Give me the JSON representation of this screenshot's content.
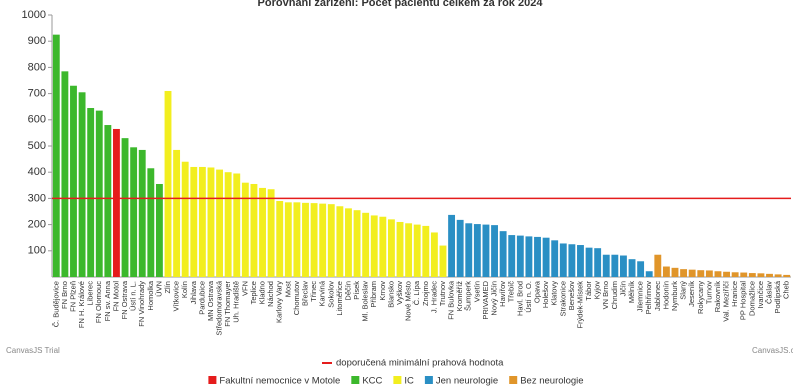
{
  "chart_data": {
    "type": "bar",
    "title": "Porovnání zařízení: Počet pacientů celkem za rok 2024",
    "categories": [
      "Č. Budějovice",
      "FN Brno",
      "FN Plzeň",
      "FN H. Králové",
      "Liberec",
      "FN Olomouc",
      "FN sv. Anna",
      "FN Motol",
      "FN Ostrava",
      "Ústí n. L.",
      "FN Vinohrady",
      "Homolka",
      "ÚVN",
      "Zlín",
      "Vítkovice",
      "Kolín",
      "Jihlava",
      "Pardubice",
      "MN Ostrava",
      "Středomoravská",
      "FN Thomayer",
      "Uh. Hradiště",
      "VFN",
      "Teplice",
      "Kladno",
      "Náchod",
      "Karlovy Vary",
      "Most",
      "Chomutov",
      "Břeclav",
      "Třinec",
      "Karviná",
      "Sokolov",
      "Litoměřice",
      "Děčín",
      "Písek",
      "Ml. Boleslav",
      "Příbram",
      "Krnov",
      "Blansko",
      "Vyškov",
      "Nové Město",
      "Č. Lípa",
      "Znojmo",
      "J. Hradec",
      "Trutnov",
      "FN Bulovka",
      "Kroměříž",
      "Šumperk",
      "Vsetín",
      "PRIVAMED",
      "Nový Jičín",
      "Havířov",
      "Třebíč",
      "Havl. Brod",
      "Ústí n. O.",
      "Opava",
      "Holešov",
      "Klatovy",
      "Strakonice",
      "Benešov",
      "Frýdek-Místek",
      "Tábor",
      "Kyjov",
      "VN Brno",
      "Chrudim",
      "Jičín",
      "Mělník",
      "Jilemnice",
      "Pelhřimov",
      "Jablonec",
      "Hodonín",
      "Nymburk",
      "Slaný",
      "Jeseník",
      "Rokycany",
      "Turnov",
      "Rakovník",
      "Val. Meziříčí",
      "Hranice",
      "PP Hospital",
      "Domažlice",
      "Ivančice",
      "Čáslav",
      "Podlipská",
      "Cheb"
    ],
    "series": [
      {
        "name": "Fakultní nemocnice v Motole",
        "color": "#e51c1c",
        "values": [
          null,
          null,
          null,
          null,
          null,
          null,
          null,
          565,
          null,
          null,
          null,
          null,
          null,
          null,
          null,
          null,
          null,
          null,
          null,
          null,
          null,
          null,
          null,
          null,
          null,
          null,
          null,
          null,
          null,
          null,
          null,
          null,
          null,
          null,
          null,
          null,
          null,
          null,
          null,
          null,
          null,
          null,
          null,
          null,
          null,
          null,
          null,
          null,
          null,
          null,
          null,
          null,
          null,
          null,
          null,
          null,
          null,
          null,
          null,
          null,
          null,
          null,
          null,
          null,
          null,
          null,
          null,
          null,
          null,
          null,
          null,
          null,
          null,
          null,
          null,
          null,
          null,
          null,
          null,
          null,
          null,
          null,
          null,
          null,
          null,
          null
        ]
      },
      {
        "name": "KCC",
        "color": "#3cb82c",
        "values": [
          925,
          785,
          730,
          705,
          645,
          635,
          580,
          null,
          530,
          495,
          485,
          415,
          355,
          null,
          null,
          null,
          null,
          null,
          null,
          null,
          null,
          null,
          null,
          null,
          null,
          null,
          null,
          null,
          null,
          null,
          null,
          null,
          null,
          null,
          null,
          null,
          null,
          null,
          null,
          null,
          null,
          null,
          null,
          null,
          null,
          null,
          null,
          null,
          null,
          null,
          null,
          null,
          null,
          null,
          null,
          null,
          null,
          null,
          null,
          null,
          null,
          null,
          null,
          null,
          null,
          null,
          null,
          null,
          null,
          null,
          null,
          null,
          null,
          null,
          null,
          null,
          null,
          null,
          null,
          null,
          null,
          null,
          null,
          null,
          null,
          null
        ]
      },
      {
        "name": "IC",
        "color": "#f2ee1f",
        "values": [
          null,
          null,
          null,
          null,
          null,
          null,
          null,
          null,
          null,
          null,
          null,
          null,
          null,
          710,
          485,
          440,
          420,
          420,
          418,
          410,
          400,
          395,
          360,
          355,
          340,
          335,
          290,
          285,
          285,
          283,
          282,
          280,
          278,
          270,
          262,
          255,
          245,
          235,
          230,
          220,
          210,
          205,
          200,
          195,
          170,
          120,
          null,
          null,
          null,
          null,
          null,
          null,
          null,
          null,
          null,
          null,
          null,
          null,
          null,
          null,
          null,
          null,
          null,
          null,
          null,
          null,
          null,
          null,
          null,
          null,
          null,
          null,
          null,
          null,
          null,
          null,
          null,
          null,
          null,
          null,
          null,
          null,
          null,
          null,
          null,
          null
        ]
      },
      {
        "name": "Jen neurologie",
        "color": "#2a8fc4",
        "values": [
          null,
          null,
          null,
          null,
          null,
          null,
          null,
          null,
          null,
          null,
          null,
          null,
          null,
          null,
          null,
          null,
          null,
          null,
          null,
          null,
          null,
          null,
          null,
          null,
          null,
          null,
          null,
          null,
          null,
          null,
          null,
          null,
          null,
          null,
          null,
          null,
          null,
          null,
          null,
          null,
          null,
          null,
          null,
          null,
          null,
          null,
          237,
          218,
          205,
          202,
          200,
          198,
          175,
          160,
          158,
          155,
          153,
          150,
          140,
          128,
          125,
          122,
          112,
          110,
          85,
          85,
          82,
          68,
          60,
          22,
          null,
          null,
          null,
          null,
          null,
          null,
          null,
          null,
          null,
          null,
          null,
          null,
          null,
          null,
          null,
          null
        ]
      },
      {
        "name": "Bez neurologie",
        "color": "#e0952a",
        "values": [
          null,
          null,
          null,
          null,
          null,
          null,
          null,
          null,
          null,
          null,
          null,
          null,
          null,
          null,
          null,
          null,
          null,
          null,
          null,
          null,
          null,
          null,
          null,
          null,
          null,
          null,
          null,
          null,
          null,
          null,
          null,
          null,
          null,
          null,
          null,
          null,
          null,
          null,
          null,
          null,
          null,
          null,
          null,
          null,
          null,
          null,
          null,
          null,
          null,
          null,
          null,
          null,
          null,
          null,
          null,
          null,
          null,
          null,
          null,
          null,
          null,
          null,
          null,
          null,
          null,
          null,
          null,
          null,
          null,
          null,
          85,
          40,
          35,
          30,
          28,
          26,
          25,
          22,
          20,
          18,
          17,
          15,
          14,
          12,
          10,
          8
        ]
      }
    ],
    "reference_line": {
      "value": 300,
      "label": "doporučená minimální prahová hodnota",
      "color": "#e51c1c"
    },
    "ylim": [
      0,
      1000
    ],
    "yticks": [
      100,
      200,
      300,
      400,
      500,
      600,
      700,
      800,
      900,
      1000
    ],
    "grid": false,
    "credits": [
      "CanvasJS Trial",
      "CanvasJS.com"
    ]
  }
}
